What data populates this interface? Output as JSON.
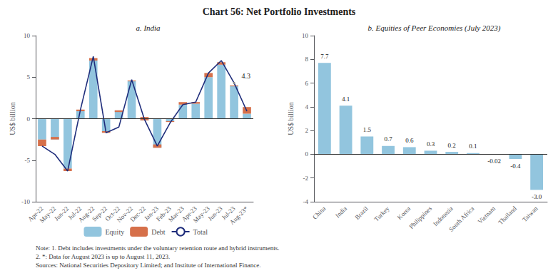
{
  "title": "Chart 56: Net Portfolio Investments",
  "notes": [
    "Note: 1. Debt includes investments under the voluntary retention route and hybrid instruments.",
    "2. *: Data for August 2023 is up to August 11, 2023.",
    "Sources: National Securities Depository Limited; and Institute of International Finance."
  ],
  "chart_data": [
    {
      "type": "bar",
      "title": "a. India",
      "ylabel": "US$ billion",
      "categories": [
        "Apr-22",
        "May-22",
        "Jun-22",
        "Jul-22",
        "Aug-22",
        "Sep-22",
        "Oct-22",
        "Nov-22",
        "Dec-22",
        "Jan-23",
        "Feb-23",
        "Mar-23",
        "Apr-23",
        "May-23",
        "Jun-23",
        "Jul-23",
        "Aug-23*"
      ],
      "stacked": true,
      "series": [
        {
          "name": "Equity",
          "type": "bar",
          "color": "#92C5DE",
          "values": [
            -2.5,
            -2.5,
            -6.0,
            0.9,
            7.0,
            -1.5,
            1.0,
            4.5,
            -0.2,
            -3.5,
            -0.3,
            1.7,
            1.8,
            5.0,
            6.5,
            4.0,
            0.6
          ]
        },
        {
          "name": "Debt",
          "type": "bar",
          "color": "#D6704A",
          "values": [
            -0.8,
            0.3,
            -0.3,
            0.2,
            0.3,
            -0.2,
            -0.2,
            0.1,
            0.4,
            0.4,
            -0.1,
            0.3,
            0.2,
            0.5,
            0.3,
            -0.1,
            0.8
          ]
        },
        {
          "name": "Total",
          "type": "line",
          "color": "#1F2D7B",
          "values": [
            -3.3,
            -4.3,
            -6.3,
            1.1,
            7.5,
            -1.7,
            -1.0,
            4.7,
            -0.1,
            -3.3,
            -0.5,
            1.7,
            2.0,
            5.5,
            7.0,
            4.3,
            0.9
          ]
        }
      ],
      "annotations": [
        {
          "text": "4.3",
          "x": "Jul-23",
          "y": 4.3
        }
      ],
      "ylim": [
        -10,
        10
      ],
      "yticks": [
        -10,
        -5,
        0,
        5,
        10
      ],
      "grid": false,
      "legend": "bottom"
    },
    {
      "type": "bar",
      "title": "b. Equities of Peer Economies (July 2023)",
      "ylabel": "US$ billion",
      "categories": [
        "China",
        "India",
        "Brazil",
        "Turkey",
        "Korea",
        "Philippines",
        "Indonesia",
        "South Africa",
        "Vietnam",
        "Thailand",
        "Taiwan"
      ],
      "values": [
        7.7,
        4.1,
        1.5,
        0.7,
        0.6,
        0.3,
        0.2,
        0.1,
        -0.02,
        -0.4,
        -3.0
      ],
      "value_labels": [
        "7.7",
        "4.1",
        "1.5",
        "0.7",
        "0.6",
        "0.3",
        "0.2",
        "0.1",
        "-0.02",
        "-0.4",
        "-3.0"
      ],
      "color": "#92C5DE",
      "data_labels": true,
      "ylim": [
        -4,
        10
      ],
      "yticks": [
        -4,
        -2,
        0,
        2,
        4,
        6,
        8,
        10
      ],
      "grid": false
    }
  ]
}
